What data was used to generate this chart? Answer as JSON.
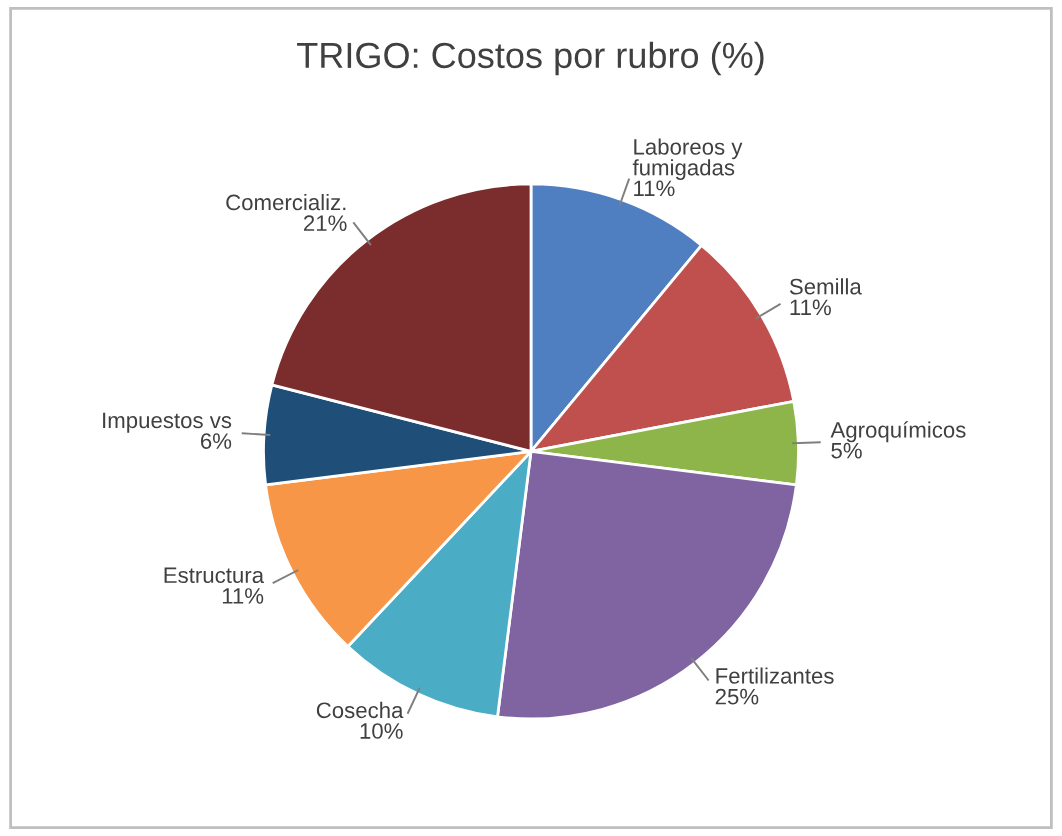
{
  "chart_data": {
    "type": "pie",
    "title": "TRIGO: Costos por rubro (%)",
    "categories": [
      "Laboreos y\nfumigadas",
      "Semilla",
      "Agroquímicos",
      "Fertilizantes",
      "Cosecha",
      "Estructura",
      "Impuestos vs",
      "Comercializ."
    ],
    "values": [
      11,
      11,
      5,
      25,
      10,
      11,
      6,
      21
    ],
    "colors": [
      "#4f7fc0",
      "#c0504d",
      "#8db54a",
      "#8064a2",
      "#4bacc6",
      "#f79646",
      "#1f4e79",
      "#7b2c2c"
    ],
    "value_labels": [
      "11%",
      "11%",
      "5%",
      "25%",
      "10%",
      "11%",
      "6%",
      "21%"
    ],
    "legend": false
  }
}
